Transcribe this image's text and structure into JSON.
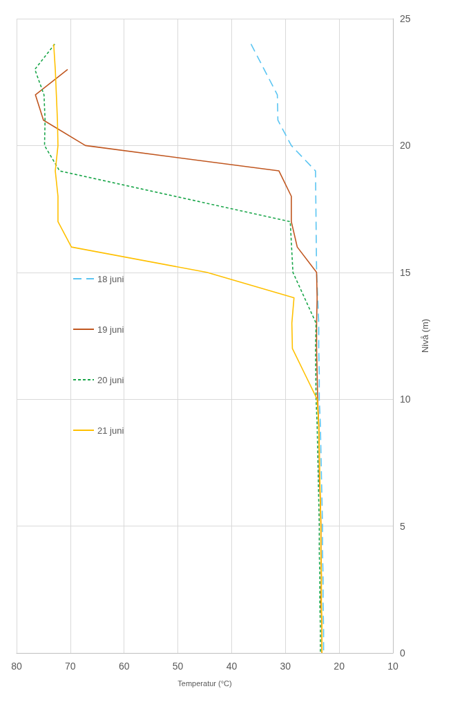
{
  "chart_data": {
    "type": "line",
    "xlabel": "Temperatur (°C)",
    "ylabel": "Nivå (m)",
    "xlim": [
      80,
      10
    ],
    "xticks": [
      80,
      70,
      60,
      50,
      40,
      30,
      20,
      10
    ],
    "ylim": [
      0,
      25
    ],
    "yticks": [
      0,
      5,
      10,
      15,
      20,
      25
    ],
    "grid": true,
    "legend": "left",
    "marker": "none",
    "series": [
      {
        "name": "18 juni",
        "color": "#5bc5f2",
        "line_style": "dashed",
        "x": [
          36.4,
          31.5,
          31.4,
          28.9,
          24.4,
          24.3,
          24.2,
          24.0,
          23.8,
          23.8,
          23.7,
          23.7,
          23.5,
          23.4,
          23.3,
          23.2,
          23.1,
          23.1,
          23.0,
          23.0,
          22.9,
          22.9
        ],
        "values": [
          24,
          22,
          21,
          20,
          19,
          17,
          15,
          14,
          13,
          12,
          11,
          10,
          9,
          8,
          7,
          6,
          5,
          4,
          3,
          2,
          1,
          0
        ]
      },
      {
        "name": "19 juni",
        "color": "#c0561f",
        "line_style": "solid",
        "x": [
          70.5,
          76.5,
          75.0,
          67.2,
          31.2,
          28.9,
          28.9,
          27.8,
          24.2,
          24.1,
          24.2,
          24.2,
          24.1,
          24.0,
          23.8,
          23.7,
          23.7,
          23.5,
          23.4,
          23.4,
          23.3,
          23.4,
          23.2,
          23.2
        ],
        "values": [
          23,
          22,
          21,
          20,
          19,
          18,
          17,
          16,
          15,
          14,
          13,
          12,
          11,
          10,
          9,
          8,
          7,
          6,
          5,
          4,
          3,
          2,
          1,
          0
        ]
      },
      {
        "name": "20 juni",
        "color": "#1aa64a",
        "line_style": "dotted",
        "x": [
          72.9,
          76.6,
          74.9,
          74.7,
          74.8,
          72.0,
          29.1,
          28.6,
          24.3,
          24.4,
          24.3,
          24.1,
          24.0,
          23.9,
          23.8,
          23.7,
          23.7,
          23.6,
          23.6,
          23.5,
          23.5
        ],
        "values": [
          24,
          23,
          22,
          21,
          20,
          19,
          17,
          15,
          13,
          12,
          10,
          9,
          8,
          7,
          6,
          5,
          4,
          3,
          2,
          1,
          0
        ]
      },
      {
        "name": "21 juni",
        "color": "#ffc000",
        "line_style": "solid",
        "x": [
          73.1,
          72.8,
          72.6,
          72.4,
          72.3,
          72.8,
          72.3,
          72.3,
          69.8,
          44.6,
          28.4,
          28.8,
          28.7,
          26.4,
          24.1,
          23.8,
          23.7,
          23.6,
          23.5,
          23.4,
          23.4,
          23.3,
          23.3,
          23.2,
          23.2
        ],
        "values": [
          24,
          23,
          22,
          21,
          20,
          19,
          18,
          17,
          16,
          15,
          14,
          13,
          12,
          11,
          10,
          9,
          8,
          7,
          6,
          5,
          4,
          3,
          2,
          1,
          0
        ]
      }
    ]
  }
}
